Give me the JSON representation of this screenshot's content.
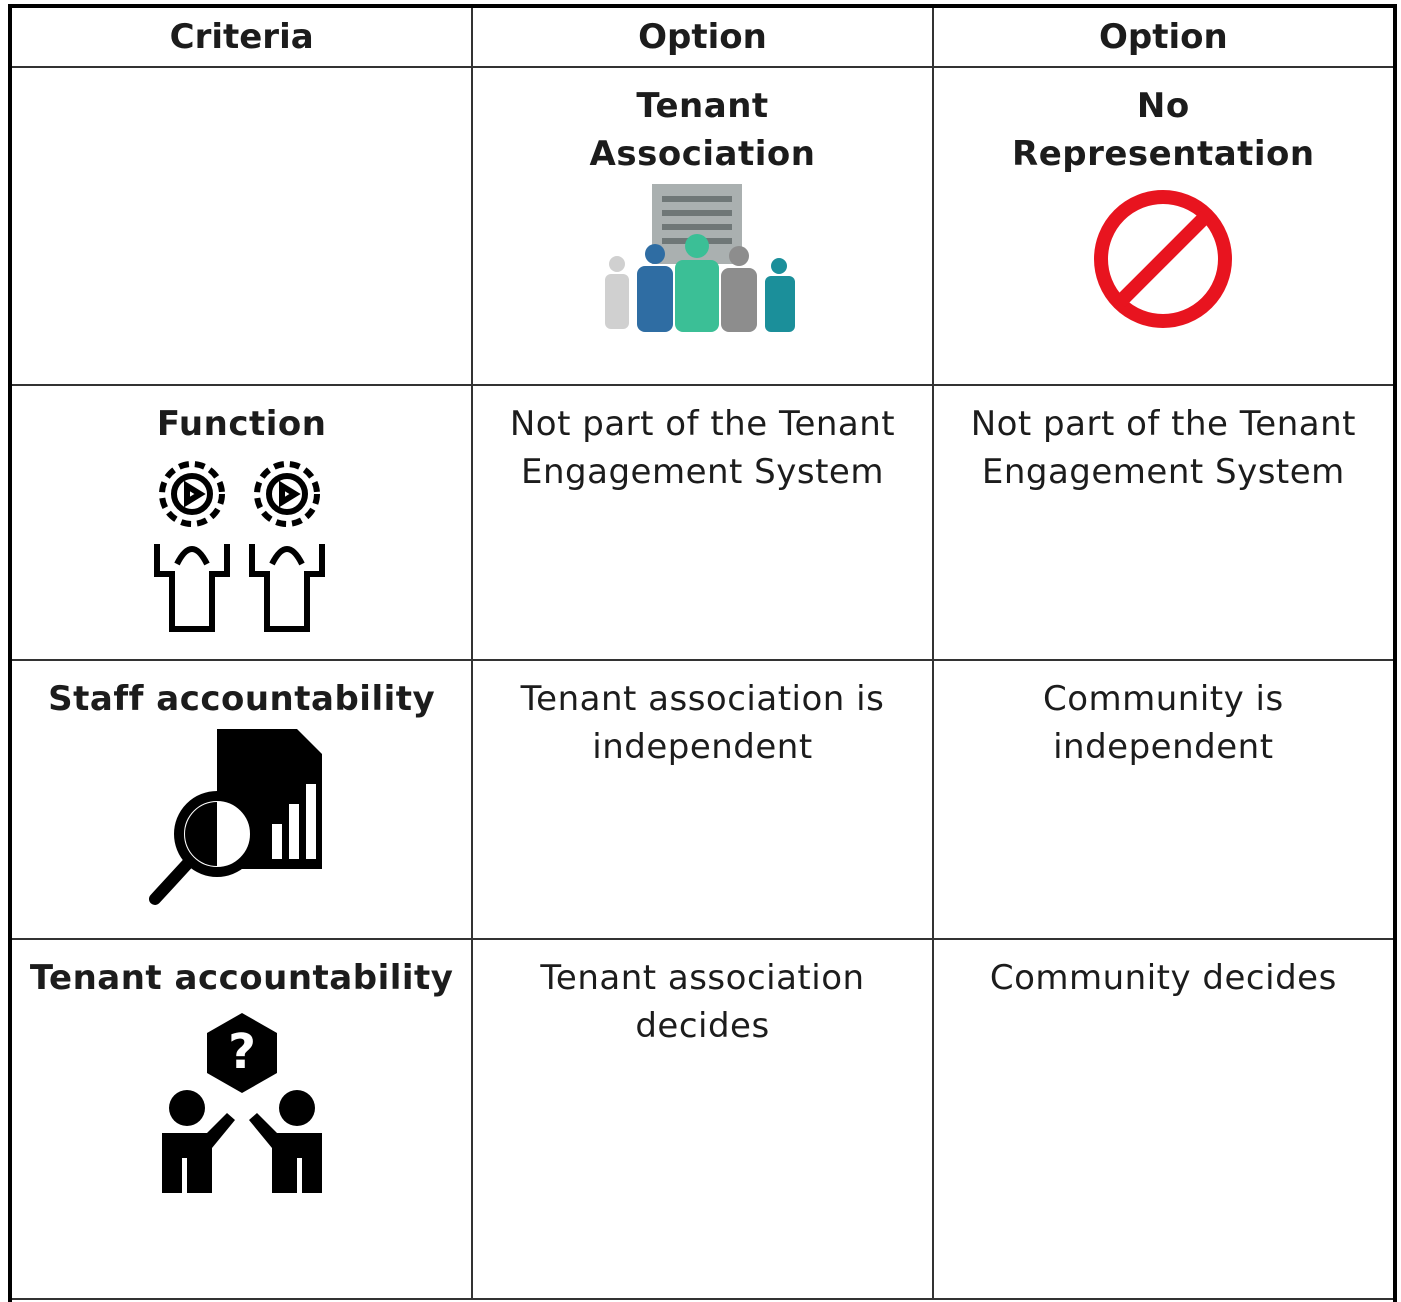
{
  "table": {
    "header": [
      "Criteria",
      "Option",
      "Option"
    ],
    "options": [
      "Tenant\nAssociation",
      "No\nRepresentation"
    ],
    "rows": [
      {
        "criterion": "Function",
        "cells": [
          "Not part of the Tenant\nEngagement System",
          "Not part of the Tenant\nEngagement System"
        ]
      },
      {
        "criterion": "Staff accountability",
        "cells": [
          "Tenant association is\nindependent",
          "Community is\nindependent"
        ]
      },
      {
        "criterion": "Tenant accountability",
        "cells": [
          "Tenant association\ndecides",
          "Community decides"
        ]
      }
    ]
  }
}
